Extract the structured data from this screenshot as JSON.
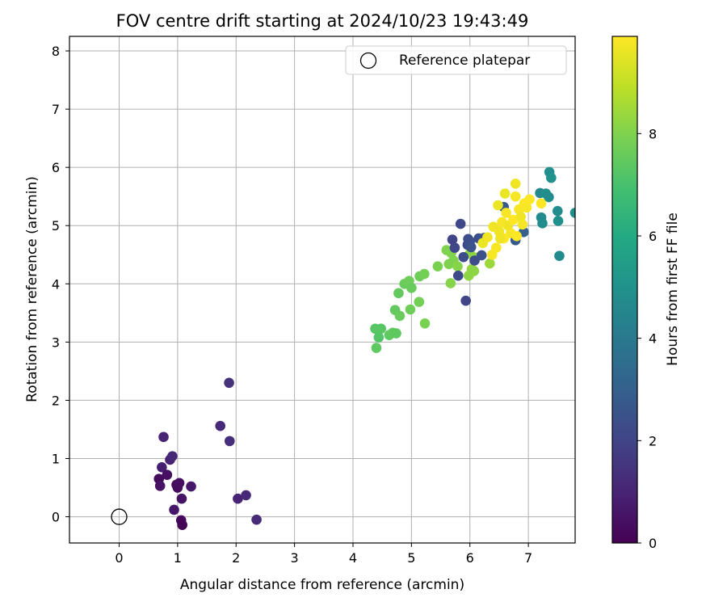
{
  "chart_data": {
    "type": "scatter",
    "title": "FOV centre drift starting at 2024/10/23 19:43:49",
    "xlabel": "Angular distance from reference (arcmin)",
    "ylabel": "Rotation from reference (arcmin)",
    "xlim": [
      -0.85,
      7.8
    ],
    "ylim": [
      -0.45,
      8.25
    ],
    "xticks": [
      "0",
      "1",
      "2",
      "3",
      "4",
      "5",
      "6",
      "7"
    ],
    "yticks": [
      "0",
      "1",
      "2",
      "3",
      "4",
      "5",
      "6",
      "7",
      "8"
    ],
    "grid": true,
    "legend": {
      "placement": "upper-right",
      "entries": [
        "Reference platepar"
      ]
    },
    "reference_point": {
      "x": 0,
      "y": 0,
      "label": "Reference platepar"
    },
    "colorbar": {
      "label": "Hours from first FF file",
      "min": 0,
      "max": 9.9,
      "ticks": [
        "0",
        "2",
        "4",
        "6",
        "8"
      ],
      "colormap": "viridis"
    },
    "points": [
      {
        "x": 0.68,
        "y": 0.65,
        "h": 0.3
      },
      {
        "x": 0.7,
        "y": 0.53,
        "h": 0.5
      },
      {
        "x": 0.73,
        "y": 0.85,
        "h": 0.8
      },
      {
        "x": 0.76,
        "y": 1.37,
        "h": 1.0
      },
      {
        "x": 0.82,
        "y": 0.72,
        "h": 0.4
      },
      {
        "x": 0.87,
        "y": 0.98,
        "h": 0.9
      },
      {
        "x": 0.91,
        "y": 1.04,
        "h": 1.1
      },
      {
        "x": 0.94,
        "y": 0.12,
        "h": 0.6
      },
      {
        "x": 0.98,
        "y": 0.55,
        "h": 0.2
      },
      {
        "x": 1.0,
        "y": 0.5,
        "h": 0.3
      },
      {
        "x": 1.03,
        "y": 0.58,
        "h": 0.4
      },
      {
        "x": 1.07,
        "y": 0.31,
        "h": 0.5
      },
      {
        "x": 1.06,
        "y": -0.06,
        "h": 0.2
      },
      {
        "x": 1.08,
        "y": -0.14,
        "h": 0.1
      },
      {
        "x": 1.23,
        "y": 0.52,
        "h": 0.6
      },
      {
        "x": 1.73,
        "y": 1.56,
        "h": 1.2
      },
      {
        "x": 1.88,
        "y": 2.3,
        "h": 1.4
      },
      {
        "x": 1.89,
        "y": 1.3,
        "h": 1.3
      },
      {
        "x": 2.03,
        "y": 0.31,
        "h": 1.0
      },
      {
        "x": 2.17,
        "y": 0.37,
        "h": 1.1
      },
      {
        "x": 2.35,
        "y": -0.05,
        "h": 1.2
      },
      {
        "x": 4.38,
        "y": 3.23,
        "h": 7.3
      },
      {
        "x": 4.4,
        "y": 2.9,
        "h": 7.4
      },
      {
        "x": 4.44,
        "y": 3.08,
        "h": 7.2
      },
      {
        "x": 4.48,
        "y": 3.23,
        "h": 7.3
      },
      {
        "x": 4.62,
        "y": 3.12,
        "h": 7.4
      },
      {
        "x": 4.68,
        "y": 3.16,
        "h": 7.5
      },
      {
        "x": 4.74,
        "y": 3.15,
        "h": 7.4
      },
      {
        "x": 4.72,
        "y": 3.55,
        "h": 7.5
      },
      {
        "x": 4.8,
        "y": 3.45,
        "h": 7.6
      },
      {
        "x": 4.78,
        "y": 3.84,
        "h": 7.5
      },
      {
        "x": 4.88,
        "y": 4.0,
        "h": 7.6
      },
      {
        "x": 4.96,
        "y": 4.05,
        "h": 7.7
      },
      {
        "x": 5.0,
        "y": 3.93,
        "h": 7.6
      },
      {
        "x": 4.98,
        "y": 3.56,
        "h": 7.7
      },
      {
        "x": 5.13,
        "y": 3.69,
        "h": 7.8
      },
      {
        "x": 5.14,
        "y": 4.13,
        "h": 7.7
      },
      {
        "x": 5.22,
        "y": 4.17,
        "h": 7.8
      },
      {
        "x": 5.23,
        "y": 3.32,
        "h": 7.9
      },
      {
        "x": 5.45,
        "y": 4.3,
        "h": 7.9
      },
      {
        "x": 5.6,
        "y": 4.58,
        "h": 8.0
      },
      {
        "x": 5.64,
        "y": 4.34,
        "h": 8.0
      },
      {
        "x": 5.67,
        "y": 4.01,
        "h": 8.1
      },
      {
        "x": 5.72,
        "y": 4.4,
        "h": 8.0
      },
      {
        "x": 5.79,
        "y": 4.3,
        "h": 8.1
      },
      {
        "x": 5.68,
        "y": 4.53,
        "h": 8.0
      },
      {
        "x": 5.98,
        "y": 4.14,
        "h": 8.2
      },
      {
        "x": 6.03,
        "y": 4.25,
        "h": 8.3
      },
      {
        "x": 6.07,
        "y": 4.22,
        "h": 8.2
      },
      {
        "x": 6.1,
        "y": 4.45,
        "h": 8.3
      },
      {
        "x": 6.0,
        "y": 4.52,
        "h": 8.2
      },
      {
        "x": 6.34,
        "y": 4.35,
        "h": 8.4
      },
      {
        "x": 5.7,
        "y": 4.76,
        "h": 2.0
      },
      {
        "x": 5.74,
        "y": 4.62,
        "h": 2.1
      },
      {
        "x": 5.8,
        "y": 4.14,
        "h": 2.2
      },
      {
        "x": 5.84,
        "y": 5.03,
        "h": 2.1
      },
      {
        "x": 5.89,
        "y": 4.46,
        "h": 2.3
      },
      {
        "x": 5.93,
        "y": 3.71,
        "h": 2.0
      },
      {
        "x": 5.96,
        "y": 4.67,
        "h": 2.2
      },
      {
        "x": 5.97,
        "y": 4.77,
        "h": 2.3
      },
      {
        "x": 6.0,
        "y": 4.73,
        "h": 2.4
      },
      {
        "x": 6.02,
        "y": 4.63,
        "h": 2.5
      },
      {
        "x": 6.08,
        "y": 4.4,
        "h": 2.3
      },
      {
        "x": 6.15,
        "y": 4.78,
        "h": 2.4
      },
      {
        "x": 6.2,
        "y": 4.49,
        "h": 2.5
      },
      {
        "x": 6.25,
        "y": 4.79,
        "h": 2.6
      },
      {
        "x": 6.58,
        "y": 5.32,
        "h": 2.7
      },
      {
        "x": 6.78,
        "y": 4.75,
        "h": 2.8
      },
      {
        "x": 6.92,
        "y": 4.89,
        "h": 3.0
      },
      {
        "x": 7.2,
        "y": 5.56,
        "h": 4.6
      },
      {
        "x": 7.22,
        "y": 5.14,
        "h": 4.7
      },
      {
        "x": 7.24,
        "y": 5.04,
        "h": 4.8
      },
      {
        "x": 7.3,
        "y": 5.55,
        "h": 4.9
      },
      {
        "x": 7.35,
        "y": 5.49,
        "h": 4.8
      },
      {
        "x": 7.36,
        "y": 5.92,
        "h": 4.9
      },
      {
        "x": 7.39,
        "y": 5.82,
        "h": 5.0
      },
      {
        "x": 7.5,
        "y": 5.25,
        "h": 4.8
      },
      {
        "x": 7.51,
        "y": 5.08,
        "h": 4.9
      },
      {
        "x": 7.53,
        "y": 4.48,
        "h": 4.7
      },
      {
        "x": 7.8,
        "y": 5.22,
        "h": 4.8
      },
      {
        "x": 6.22,
        "y": 4.7,
        "h": 9.6
      },
      {
        "x": 6.3,
        "y": 4.8,
        "h": 9.7
      },
      {
        "x": 6.38,
        "y": 4.5,
        "h": 9.8
      },
      {
        "x": 6.4,
        "y": 4.98,
        "h": 9.7
      },
      {
        "x": 6.45,
        "y": 4.62,
        "h": 9.8
      },
      {
        "x": 6.48,
        "y": 5.35,
        "h": 9.6
      },
      {
        "x": 6.5,
        "y": 4.9,
        "h": 9.7
      },
      {
        "x": 6.55,
        "y": 5.06,
        "h": 9.8
      },
      {
        "x": 6.58,
        "y": 4.78,
        "h": 9.9
      },
      {
        "x": 6.62,
        "y": 5.22,
        "h": 9.8
      },
      {
        "x": 6.65,
        "y": 5.0,
        "h": 9.7
      },
      {
        "x": 6.7,
        "y": 4.87,
        "h": 9.8
      },
      {
        "x": 6.74,
        "y": 5.1,
        "h": 9.9
      },
      {
        "x": 6.78,
        "y": 5.72,
        "h": 9.7
      },
      {
        "x": 6.78,
        "y": 5.5,
        "h": 9.8
      },
      {
        "x": 6.8,
        "y": 4.82,
        "h": 9.9
      },
      {
        "x": 6.84,
        "y": 5.28,
        "h": 9.8
      },
      {
        "x": 6.87,
        "y": 5.15,
        "h": 9.7
      },
      {
        "x": 6.9,
        "y": 5.02,
        "h": 9.8
      },
      {
        "x": 6.93,
        "y": 5.38,
        "h": 9.9
      },
      {
        "x": 6.97,
        "y": 5.31,
        "h": 9.8
      },
      {
        "x": 7.02,
        "y": 5.45,
        "h": 9.9
      },
      {
        "x": 6.6,
        "y": 5.55,
        "h": 9.6
      },
      {
        "x": 7.22,
        "y": 5.38,
        "h": 9.9
      },
      {
        "x": 6.52,
        "y": 4.78,
        "h": 9.7
      }
    ]
  }
}
